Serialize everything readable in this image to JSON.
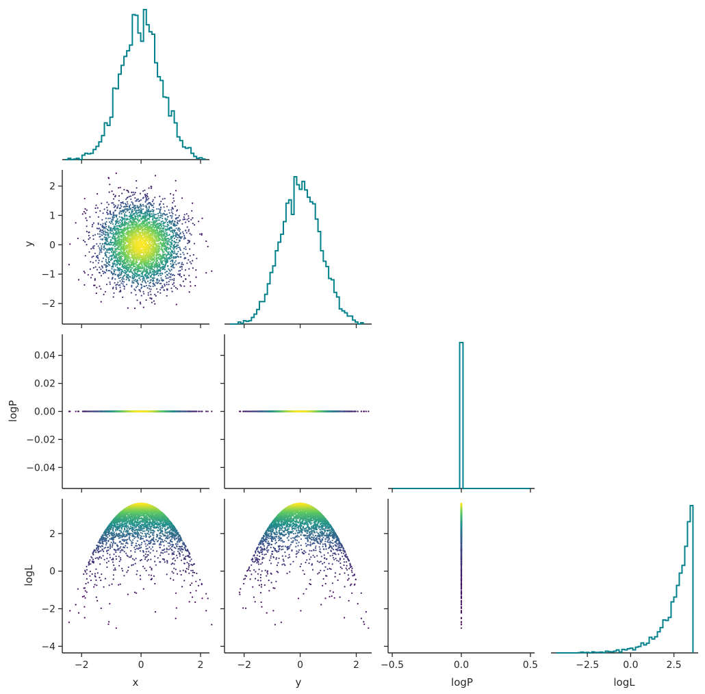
{
  "chart_data": {
    "type": "corner",
    "parameters": [
      "x",
      "y",
      "logP",
      "logL"
    ],
    "axis_labels": {
      "x": "x",
      "y": "y",
      "logP": "logP",
      "logL": "logL"
    },
    "colormap": "viridis",
    "colors": {
      "hist_line": "#00808a",
      "viridis": [
        "#440154",
        "#3b528b",
        "#21918c",
        "#5ec962",
        "#fde725"
      ]
    },
    "distributions": {
      "x": {
        "mean": 0,
        "sd": 0.7
      },
      "y": {
        "mean": 0,
        "sd": 0.7
      },
      "logP": {
        "constant": 0
      },
      "logL": {
        "formula": "3.6 - (x^2 + y^2)"
      }
    },
    "sample_count": 4000,
    "ranges": {
      "x": [
        -2.65,
        2.3
      ],
      "y": [
        -2.7,
        2.55
      ],
      "logP": [
        -0.055,
        0.055
      ],
      "logP_hist": [
        -0.53,
        0.53
      ],
      "logL_scatter": [
        -4.35,
        3.85
      ],
      "logL_hist": [
        -4.6,
        3.9
      ]
    },
    "ticks": {
      "x": [
        -2,
        0,
        2
      ],
      "y": [
        -2,
        0,
        2
      ],
      "y_left": [
        -2,
        -1,
        0,
        1,
        2
      ],
      "logP_left": [
        -0.04,
        -0.02,
        0.0,
        0.02,
        0.04
      ],
      "logP_bottom": [
        -0.5,
        0.0,
        0.5
      ],
      "logL_left": [
        -4,
        -2,
        0,
        2
      ],
      "logL_bottom": [
        -2.5,
        0.0,
        2.5
      ]
    },
    "tick_labels": {
      "x": [
        "−2",
        "0",
        "2"
      ],
      "y": [
        "−2",
        "0",
        "2"
      ],
      "y_left": [
        "−2",
        "−1",
        "0",
        "1",
        "2"
      ],
      "logP_left": [
        "−0.04",
        "−0.02",
        "0.00",
        "0.02",
        "0.04"
      ],
      "logP_bottom": [
        "−0.5",
        "0.0",
        "0.5"
      ],
      "logL_left": [
        "−4",
        "−2",
        "0",
        "2"
      ],
      "logL_bottom": [
        "−2.5",
        "0.0",
        "2.5"
      ]
    },
    "panels": [
      {
        "row": 0,
        "col": 0,
        "kind": "hist",
        "param": "x"
      },
      {
        "row": 1,
        "col": 0,
        "kind": "scatter",
        "xparam": "x",
        "yparam": "y"
      },
      {
        "row": 1,
        "col": 1,
        "kind": "hist",
        "param": "y"
      },
      {
        "row": 2,
        "col": 0,
        "kind": "scatter",
        "xparam": "x",
        "yparam": "logP"
      },
      {
        "row": 2,
        "col": 1,
        "kind": "scatter",
        "xparam": "y",
        "yparam": "logP"
      },
      {
        "row": 2,
        "col": 2,
        "kind": "hist",
        "param": "logP"
      },
      {
        "row": 3,
        "col": 0,
        "kind": "scatter",
        "xparam": "x",
        "yparam": "logL"
      },
      {
        "row": 3,
        "col": 1,
        "kind": "scatter",
        "xparam": "y",
        "yparam": "logL"
      },
      {
        "row": 3,
        "col": 2,
        "kind": "scatter",
        "xparam": "logP",
        "yparam": "logL"
      },
      {
        "row": 3,
        "col": 3,
        "kind": "hist",
        "param": "logL"
      }
    ],
    "grid": false,
    "legend": "none"
  }
}
